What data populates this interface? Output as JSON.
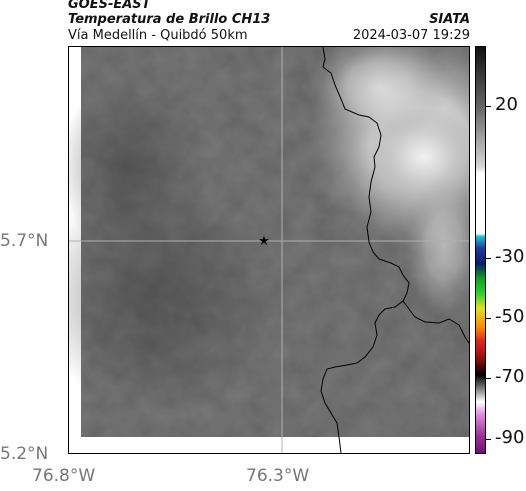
{
  "header": {
    "satellite": "GOES-EAST",
    "product": "Temperatura de Brillo CH13",
    "region": "Vía Medellín - Quibdó 50km",
    "agency": "SIATA",
    "timestamp": "2024-03-07 19:29"
  },
  "map": {
    "lat_labels": [
      "5.7°N",
      "5.2°N"
    ],
    "lon_labels": [
      "76.8°W",
      "76.3°W"
    ],
    "marker_icon": "star-icon",
    "border_color": "#000000",
    "gridline_color": "#b0b0b0"
  },
  "colorbar": {
    "tick_labels": [
      "20",
      "-30",
      "-50",
      "-70",
      "-90"
    ],
    "range": [
      -95,
      40
    ],
    "stops": [
      {
        "value": 40,
        "color": "#111111"
      },
      {
        "value": 20,
        "color": "#666666"
      },
      {
        "value": 0,
        "color": "#d8d8d8"
      },
      {
        "value": -2,
        "color": "#ffffff"
      },
      {
        "value": -22,
        "color": "#ffffff"
      },
      {
        "value": -23,
        "color": "#22c0d0"
      },
      {
        "value": -27,
        "color": "#1a3aa0"
      },
      {
        "value": -32,
        "color": "#0a1a70"
      },
      {
        "value": -37,
        "color": "#10a020"
      },
      {
        "value": -42,
        "color": "#30d030"
      },
      {
        "value": -47,
        "color": "#e0e020"
      },
      {
        "value": -53,
        "color": "#ff8c00"
      },
      {
        "value": -58,
        "color": "#e02020"
      },
      {
        "value": -63,
        "color": "#a01010"
      },
      {
        "value": -69,
        "color": "#000000"
      },
      {
        "value": -74,
        "color": "#888888"
      },
      {
        "value": -78,
        "color": "#ffffff"
      },
      {
        "value": -82,
        "color": "#e090e0"
      },
      {
        "value": -89,
        "color": "#a030a0"
      },
      {
        "value": -95,
        "color": "#701070"
      }
    ]
  }
}
